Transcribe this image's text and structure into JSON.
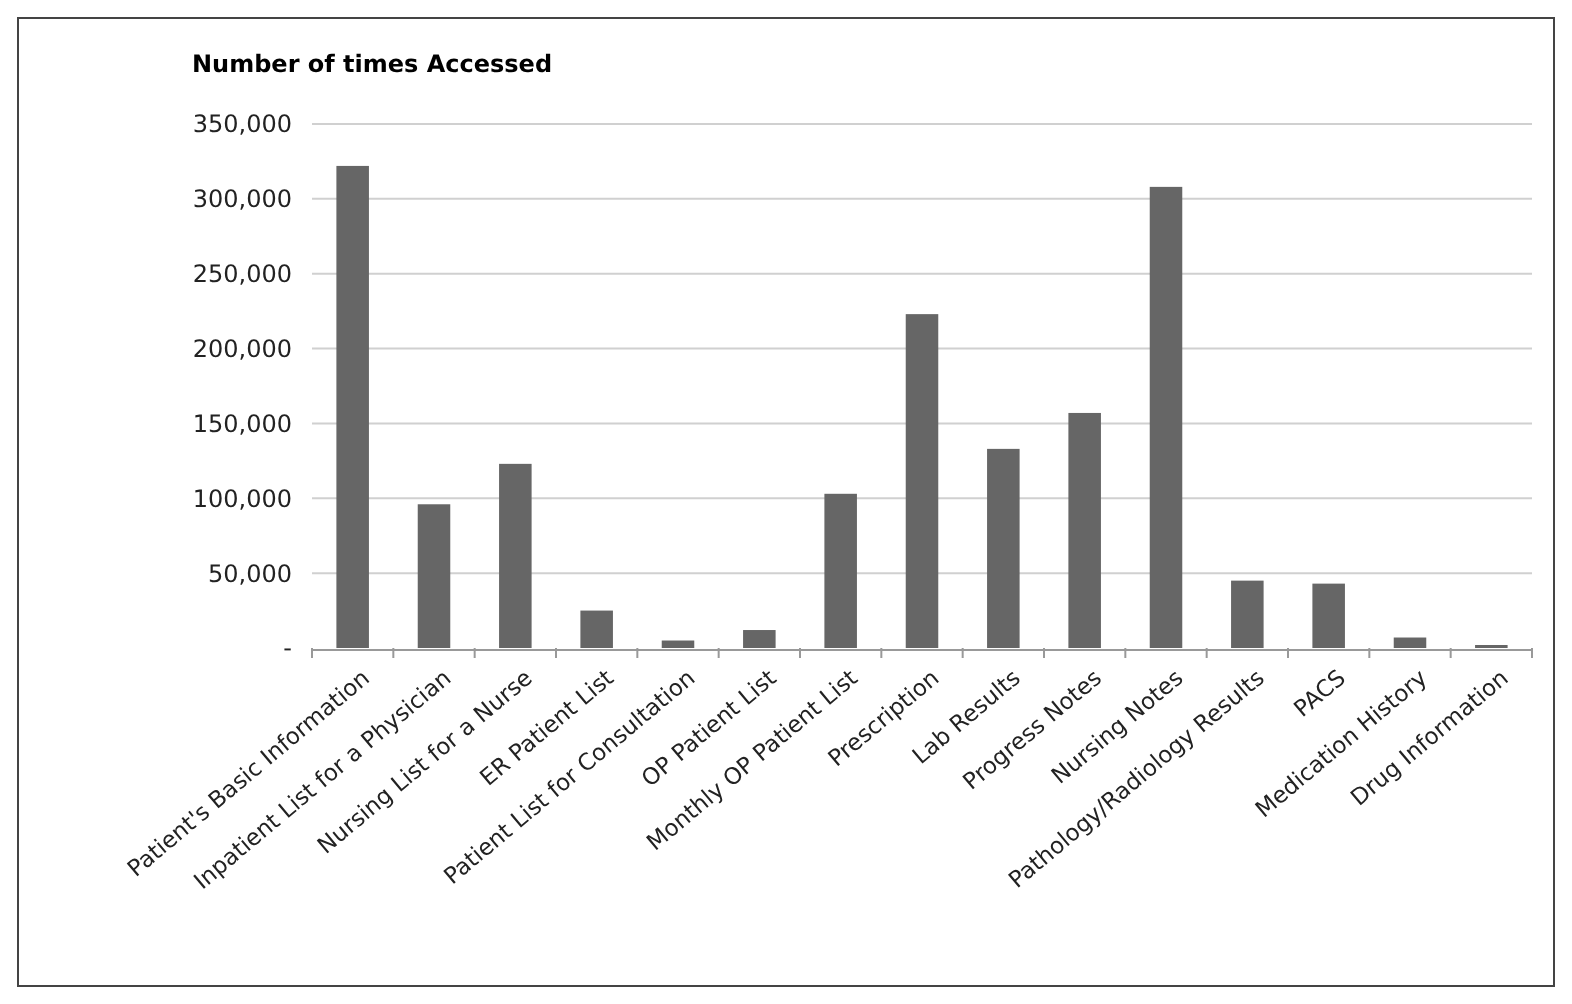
{
  "chart_data": {
    "type": "bar",
    "title": "Number of times Accessed",
    "categories": [
      "Patient's Basic Information",
      "Inpatient List for a Physician",
      "Nursing List for a Nurse",
      "ER Patient List",
      "Patient List for Consultation",
      "OP Patient List",
      "Monthly OP Patient List",
      "Prescription",
      "Lab Results",
      "Progress Notes",
      "Nursing Notes",
      "Pathology/Radiology Results",
      "PACS",
      "Medication History",
      "Drug Information"
    ],
    "values": [
      322000,
      96000,
      123000,
      25000,
      5000,
      12000,
      103000,
      223000,
      133000,
      157000,
      308000,
      45000,
      43000,
      7000,
      2000
    ],
    "color": "#666666",
    "ylim": [
      0,
      350000
    ],
    "yticks": [
      {
        "value": 0,
        "label": "-"
      },
      {
        "value": 50000,
        "label": "50,000"
      },
      {
        "value": 100000,
        "label": "100,000"
      },
      {
        "value": 150000,
        "label": "150,000"
      },
      {
        "value": 200000,
        "label": "200,000"
      },
      {
        "value": 250000,
        "label": "250,000"
      },
      {
        "value": 300000,
        "label": "300,000"
      },
      {
        "value": 350000,
        "label": "350,000"
      }
    ],
    "grid": "y"
  }
}
